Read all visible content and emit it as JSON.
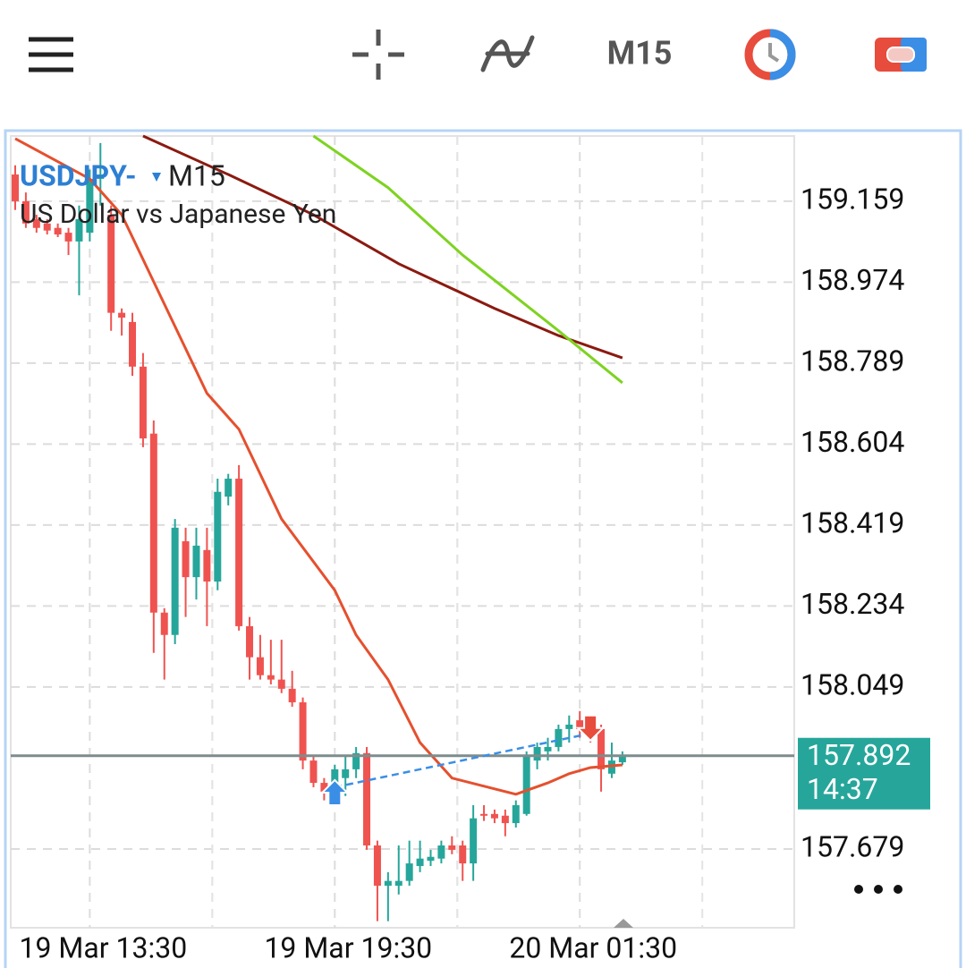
{
  "toolbar": {
    "timeframe": "M15"
  },
  "chart_data": {
    "type": "candlestick",
    "symbol": "USDJPY-",
    "timeframe": "M15",
    "description": "US Dollar vs Japanese Yen",
    "ylim": [
      157.499,
      159.308
    ],
    "yticks": [
      159.159,
      158.974,
      158.789,
      158.604,
      158.419,
      158.234,
      158.049,
      157.679
    ],
    "xticks": [
      {
        "value": 7,
        "label": "19 Mar 13:30"
      },
      {
        "value": 30,
        "label": "19 Mar 19:30"
      },
      {
        "value": 53,
        "label": "20 Mar 01:30"
      }
    ],
    "grid": true,
    "up_color": "#26a69a",
    "down_color": "#ef5350",
    "candles": [
      [
        159.22,
        159.241,
        159.139,
        159.159
      ],
      [
        159.159,
        159.179,
        159.098,
        159.108
      ],
      [
        159.118,
        159.128,
        159.087,
        159.098
      ],
      [
        159.108,
        159.118,
        159.083,
        159.092
      ],
      [
        159.098,
        159.108,
        159.077,
        159.083
      ],
      [
        159.087,
        159.098,
        159.036,
        159.067
      ],
      [
        159.067,
        159.149,
        158.944,
        159.118
      ],
      [
        159.087,
        159.231,
        159.067,
        159.21
      ],
      [
        159.21,
        159.292,
        159.149,
        159.22
      ],
      [
        159.128,
        159.149,
        158.863,
        158.904
      ],
      [
        158.904,
        158.914,
        158.852,
        158.893
      ],
      [
        158.883,
        158.904,
        158.76,
        158.781
      ],
      [
        158.781,
        158.812,
        158.597,
        158.617
      ],
      [
        158.628,
        158.658,
        158.127,
        158.219
      ],
      [
        158.219,
        158.229,
        158.066,
        158.168
      ],
      [
        158.168,
        158.433,
        158.147,
        158.413
      ],
      [
        158.382,
        158.413,
        158.209,
        158.3
      ],
      [
        158.3,
        158.413,
        158.249,
        158.372
      ],
      [
        158.362,
        158.413,
        158.188,
        158.29
      ],
      [
        158.29,
        158.525,
        158.27,
        158.495
      ],
      [
        158.484,
        158.536,
        158.464,
        158.525
      ],
      [
        158.525,
        158.556,
        158.178,
        158.188
      ],
      [
        158.188,
        158.209,
        158.066,
        158.117
      ],
      [
        158.117,
        158.168,
        158.066,
        158.076
      ],
      [
        158.076,
        158.157,
        158.055,
        158.066
      ],
      [
        158.066,
        158.157,
        158.035,
        158.045
      ],
      [
        158.045,
        158.086,
        158.004,
        158.014
      ],
      [
        158.014,
        158.025,
        157.861,
        157.881
      ],
      [
        157.881,
        157.892,
        157.82,
        157.83
      ],
      [
        157.83,
        157.841,
        157.79,
        157.81
      ],
      [
        157.81,
        157.871,
        157.79,
        157.861
      ],
      [
        157.841,
        157.892,
        157.8,
        157.861
      ],
      [
        157.861,
        157.912,
        157.841,
        157.898
      ],
      [
        157.898,
        157.912,
        157.677,
        157.687
      ],
      [
        157.687,
        157.698,
        157.514,
        157.595
      ],
      [
        157.595,
        157.626,
        157.514,
        157.606
      ],
      [
        157.595,
        157.687,
        157.575,
        157.606
      ],
      [
        157.606,
        157.698,
        157.595,
        157.646
      ],
      [
        157.64,
        157.698,
        157.626,
        157.657
      ],
      [
        157.652,
        157.677,
        157.64,
        157.661
      ],
      [
        157.657,
        157.698,
        157.646,
        157.687
      ],
      [
        157.687,
        157.708,
        157.667,
        157.677
      ],
      [
        157.687,
        157.698,
        157.606,
        157.646
      ],
      [
        157.646,
        157.779,
        157.606,
        157.749
      ],
      [
        157.759,
        157.779,
        157.743,
        157.755
      ],
      [
        157.759,
        157.769,
        157.738,
        157.749
      ],
      [
        157.755,
        157.769,
        157.708,
        157.738
      ],
      [
        157.738,
        157.79,
        157.728,
        157.779
      ],
      [
        157.759,
        157.902,
        157.755,
        157.892
      ],
      [
        157.881,
        157.922,
        157.861,
        157.912
      ],
      [
        157.902,
        157.933,
        157.881,
        157.912
      ],
      [
        157.912,
        157.963,
        157.902,
        157.953
      ],
      [
        157.953,
        157.984,
        157.922,
        157.963
      ],
      [
        157.973,
        157.994,
        157.933,
        157.953
      ],
      [
        157.963,
        157.984,
        157.922,
        157.933
      ],
      [
        157.953,
        157.963,
        157.81,
        157.861
      ],
      [
        157.851,
        157.922,
        157.841,
        157.881
      ],
      [
        157.877,
        157.902,
        157.871,
        157.892
      ]
    ],
    "series": [
      {
        "color": "#e5502e",
        "x": [
          0,
          7,
          10,
          14,
          18,
          21,
          25,
          30,
          32,
          35,
          38,
          41,
          47,
          50,
          52,
          54,
          57
        ],
        "values": [
          159.302,
          159.21,
          159.128,
          158.924,
          158.72,
          158.638,
          158.433,
          158.27,
          158.168,
          158.066,
          157.922,
          157.841,
          157.804,
          157.83,
          157.851,
          157.865,
          157.871
        ]
      },
      {
        "color": "#8b1a10",
        "x": [
          12,
          20,
          28,
          36,
          45,
          51,
          57
        ],
        "values": [
          159.308,
          159.22,
          159.128,
          159.016,
          158.914,
          158.852,
          158.801
        ]
      },
      {
        "color": "#7ed321",
        "x": [
          28,
          35,
          42,
          51,
          57
        ],
        "values": [
          159.308,
          159.19,
          159.036,
          158.863,
          158.744
        ]
      }
    ],
    "trade": {
      "open_index": 30,
      "open_price": 157.82,
      "close_index": 54,
      "close_price": 157.943
    },
    "current_price": 157.892,
    "countdown": "14:37"
  }
}
